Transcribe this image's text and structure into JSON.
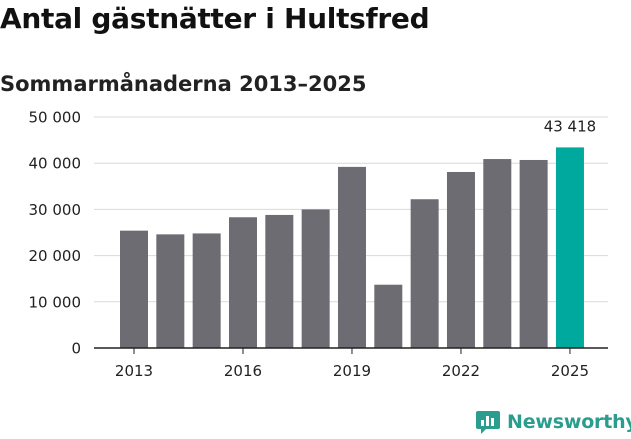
{
  "header": {
    "title": "Antal gästnätter i Hultsfred",
    "subtitle": "Sommarmånaderna 2013–2025"
  },
  "brand": {
    "name": "Newsworthy",
    "icon": "bar-chart-speech-bubble-icon",
    "color": "#2a9d8f"
  },
  "colors": {
    "bar": "#6d6c72",
    "highlight": "#00a99d",
    "grid": "#d9d9d9",
    "axis": "#222222"
  },
  "chart_data": {
    "type": "bar",
    "title": "Antal gästnätter i Hultsfred",
    "subtitle": "Sommarmånaderna 2013–2025",
    "xlabel": "",
    "ylabel": "",
    "categories": [
      "2013",
      "2014",
      "2015",
      "2016",
      "2017",
      "2018",
      "2019",
      "2020",
      "2021",
      "2022",
      "2023",
      "2024",
      "2025"
    ],
    "values": [
      25400,
      24600,
      24800,
      28300,
      28800,
      30000,
      39200,
      13700,
      32200,
      38100,
      40900,
      40700,
      43418
    ],
    "highlight_index": 12,
    "ylim": [
      0,
      50000
    ],
    "yticks": [
      0,
      10000,
      20000,
      30000,
      40000,
      50000
    ],
    "ytick_labels": [
      "0",
      "10 000",
      "20 000",
      "30 000",
      "40 000",
      "50 000"
    ],
    "xtick_labels": [
      "2013",
      "2016",
      "2019",
      "2022",
      "2025"
    ],
    "data_labels": [
      {
        "index": 12,
        "text": "43 418"
      }
    ],
    "grid": true,
    "legend": "none"
  }
}
